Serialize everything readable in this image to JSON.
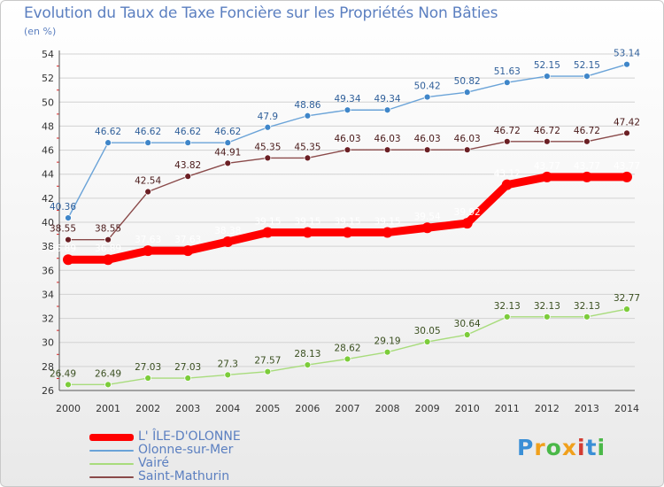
{
  "chart_data": {
    "type": "line",
    "title": "Evolution du Taux de Taxe Foncière sur les Propriétés Non Bâties",
    "subtitle": "(en %)",
    "xlabel": "",
    "ylabel": "(en %)",
    "x": [
      "2000",
      "2001",
      "2002",
      "2003",
      "2004",
      "2005",
      "2006",
      "2007",
      "2008",
      "2009",
      "2010",
      "2011",
      "2012",
      "2013",
      "2014"
    ],
    "ylim": [
      26,
      54
    ],
    "yticks": [
      26,
      28,
      30,
      32,
      34,
      36,
      38,
      40,
      42,
      44,
      46,
      48,
      50,
      52,
      54
    ],
    "grid": true,
    "legend_position": "bottom-left",
    "series": [
      {
        "name": "L' ÎLE-D'OLONNE",
        "color": "#ff0000",
        "marker_color": "#ff0000",
        "label_color": "#ffffff",
        "emphasis": true,
        "values": [
          36.89,
          36.89,
          37.63,
          37.63,
          38.38,
          39.15,
          39.15,
          39.15,
          39.15,
          39.54,
          39.92,
          43.12,
          43.77,
          43.77,
          43.77
        ],
        "labels": [
          "36.89",
          "36.89",
          "37.63",
          "37.63",
          "38.38",
          "39.15",
          "39.15",
          "39.15",
          "39.15",
          "39.54",
          "39.92",
          "43.12",
          "43.77",
          "43.77",
          "43.77"
        ]
      },
      {
        "name": "Olonne-sur-Mer",
        "color": "#6aa3d8",
        "marker_color": "#3f86c9",
        "label_color": "#2f5f9a",
        "emphasis": false,
        "values": [
          40.36,
          46.62,
          46.62,
          46.62,
          46.62,
          47.9,
          48.86,
          49.34,
          49.34,
          50.42,
          50.82,
          51.63,
          52.15,
          52.15,
          53.14
        ],
        "labels": [
          "40.36",
          "46.62",
          "46.62",
          "46.62",
          "46.62",
          "47.9",
          "48.86",
          "49.34",
          "49.34",
          "50.42",
          "50.82",
          "51.63",
          "52.15",
          "52.15",
          "53.14"
        ]
      },
      {
        "name": "Vairé",
        "color": "#a8dc7c",
        "marker_color": "#7ccc3a",
        "label_color": "#3a4f20",
        "emphasis": false,
        "values": [
          26.49,
          26.49,
          27.03,
          27.03,
          27.3,
          27.57,
          28.13,
          28.62,
          29.19,
          30.05,
          30.64,
          32.13,
          32.13,
          32.13,
          32.77
        ],
        "labels": [
          "26.49",
          "26.49",
          "27.03",
          "27.03",
          "27.3",
          "27.57",
          "28.13",
          "28.62",
          "29.19",
          "30.05",
          "30.64",
          "32.13",
          "32.13",
          "32.13",
          "32.77"
        ]
      },
      {
        "name": "Saint-Mathurin",
        "color": "#8a4a4a",
        "marker_color": "#6b1f24",
        "label_color": "#4a1a1a",
        "emphasis": false,
        "values": [
          38.55,
          38.55,
          42.54,
          43.82,
          44.91,
          45.35,
          45.35,
          46.03,
          46.03,
          46.03,
          46.03,
          46.72,
          46.72,
          46.72,
          47.42
        ],
        "labels": [
          "38.55",
          "38.55",
          "42.54",
          "43.82",
          "44.91",
          "45.35",
          "45.35",
          "46.03",
          "46.03",
          "46.03",
          "46.03",
          "46.72",
          "46.72",
          "46.72",
          "47.42"
        ]
      }
    ]
  },
  "legend": {
    "items": [
      {
        "label": "L' ÎLE-D'OLONNE",
        "color": "#ff0000"
      },
      {
        "label": "Olonne-sur-Mer",
        "color": "#6aa3d8"
      },
      {
        "label": "Vairé",
        "color": "#a8dc7c"
      },
      {
        "label": "Saint-Mathurin",
        "color": "#8a4a4a"
      }
    ]
  },
  "brand": {
    "letters": [
      "P",
      "r",
      "o",
      "x",
      "i",
      "t",
      "i"
    ],
    "colors": [
      "#3a8fd6",
      "#f0a01c",
      "#4ab848",
      "#f0a01c",
      "#d33c32",
      "#3a8fd6",
      "#4ab848"
    ]
  },
  "colors": {
    "title": "#5b7fc0",
    "grid": "#d2d2d2",
    "axis": "#555555",
    "tick_marks": "#dd2222"
  }
}
